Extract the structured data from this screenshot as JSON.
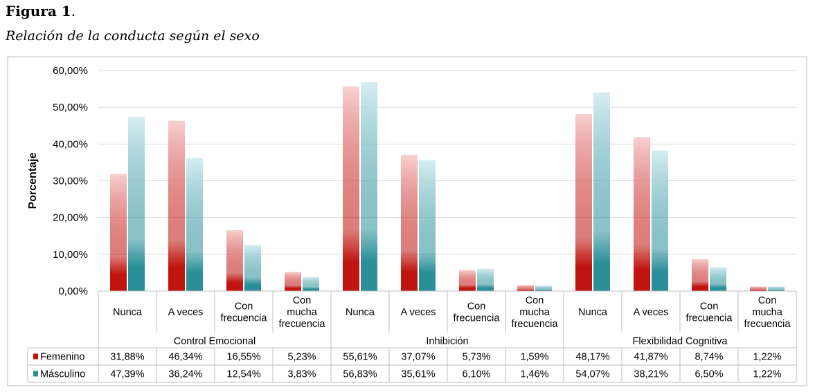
{
  "figure": {
    "label": "Figura 1",
    "label_punct": ".",
    "caption": "Relación de la conducta según el sexo"
  },
  "chart_data": {
    "type": "bar",
    "ylabel": "Porcentaje",
    "ylim": [
      0,
      60
    ],
    "yticks": [
      "0,00%",
      "10,00%",
      "20,00%",
      "30,00%",
      "40,00%",
      "50,00%",
      "60,00%"
    ],
    "grid": true,
    "legend_placement": "table rows below chart",
    "groups": [
      {
        "name": "Control Emocional",
        "categories": [
          [
            "Nunca"
          ],
          [
            "A veces"
          ],
          [
            "Con",
            "frecuencia"
          ],
          [
            "Con",
            "mucha",
            "frecuencia"
          ]
        ]
      },
      {
        "name": "Inhibición",
        "categories": [
          [
            "Nunca"
          ],
          [
            "A veces"
          ],
          [
            "Con",
            "frecuencia"
          ],
          [
            "Con",
            "mucha",
            "frecuencia"
          ]
        ]
      },
      {
        "name": "Flexibilidad Cognitiva",
        "categories": [
          [
            "Nunca"
          ],
          [
            "A veces"
          ],
          [
            "Con",
            "frecuencia"
          ],
          [
            "Con",
            "mucha",
            "frecuencia"
          ]
        ]
      }
    ],
    "series": [
      {
        "name": "Femenino",
        "color_dark": "#c0140f",
        "color_light": "#f8d0d0",
        "values": [
          31.88,
          46.34,
          16.55,
          5.23,
          55.61,
          37.07,
          5.73,
          1.59,
          48.17,
          41.87,
          8.74,
          1.22
        ],
        "labels": [
          "31,88%",
          "46,34%",
          "16,55%",
          "5,23%",
          "55,61%",
          "37,07%",
          "5,73%",
          "1,59%",
          "48,17%",
          "41,87%",
          "8,74%",
          "1,22%"
        ]
      },
      {
        "name": "Másculino",
        "color_dark": "#2a8f99",
        "color_light": "#d6eef2",
        "values": [
          47.39,
          36.24,
          12.54,
          3.83,
          56.83,
          35.61,
          6.1,
          1.46,
          54.07,
          38.21,
          6.5,
          1.22
        ],
        "labels": [
          "47,39%",
          "36,24%",
          "12,54%",
          "3,83%",
          "56,83%",
          "35,61%",
          "6,10%",
          "1,46%",
          "54,07%",
          "38,21%",
          "6,50%",
          "1,22%"
        ]
      }
    ]
  }
}
